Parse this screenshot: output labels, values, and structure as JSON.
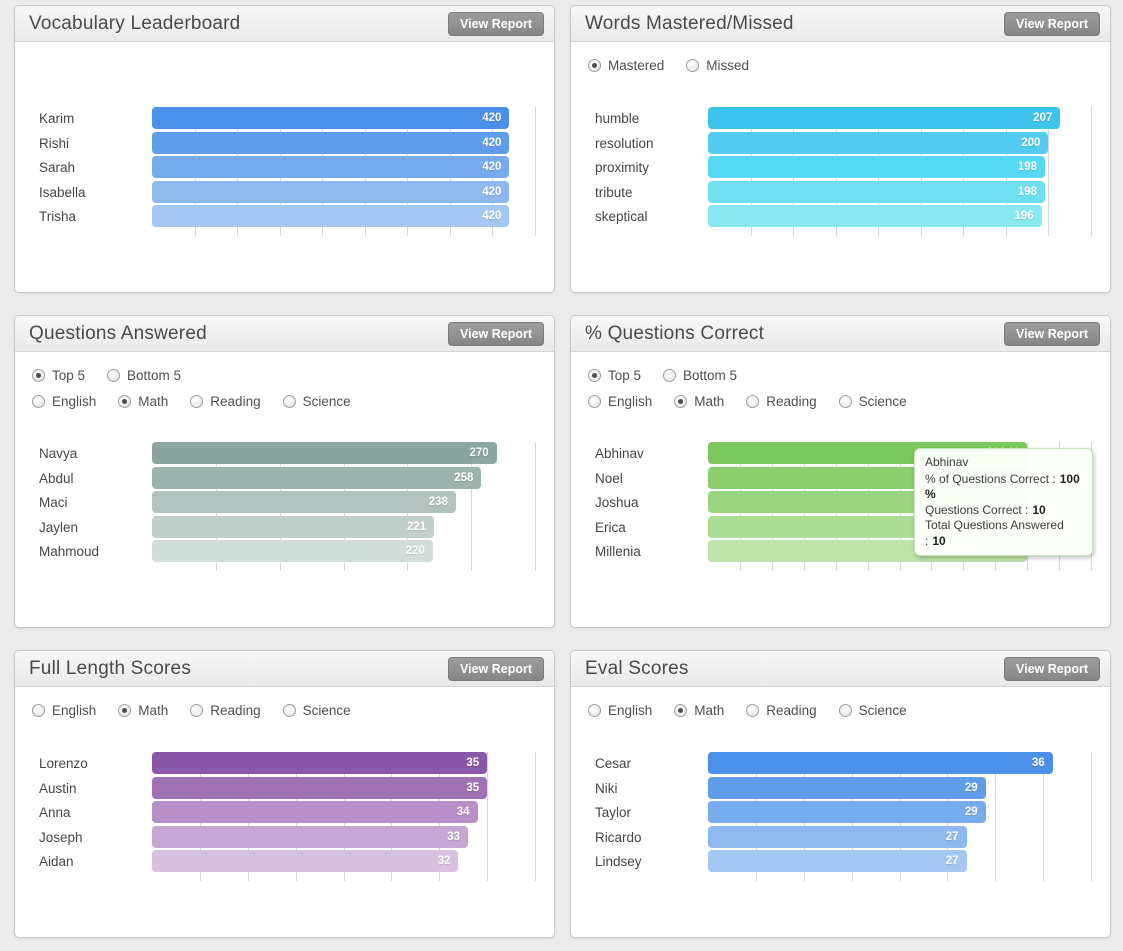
{
  "panels": [
    {
      "title": "Vocabulary Leaderboard",
      "view_report_label": "View Report",
      "radio_rows": [],
      "chart_data": {
        "type": "bar",
        "orientation": "horizontal",
        "categories": [
          "Karim",
          "Rishi",
          "Sarah",
          "Isabella",
          "Trisha"
        ],
        "values": [
          420,
          420,
          420,
          420,
          420
        ],
        "value_labels": [
          "420",
          "420",
          "420",
          "420",
          "420"
        ],
        "axis_max": 450,
        "grid_step": 50,
        "grid": true,
        "bar_colors": [
          "#4a8fe8",
          "#5f9ce9",
          "#77abec",
          "#8db9ef",
          "#a4c7f2"
        ]
      }
    },
    {
      "title": "Words Mastered/Missed",
      "view_report_label": "View Report",
      "radio_rows": [
        [
          {
            "label": "Mastered",
            "selected": true
          },
          {
            "label": "Missed",
            "selected": false
          }
        ]
      ],
      "chart_data": {
        "type": "bar",
        "orientation": "horizontal",
        "categories": [
          "humble",
          "resolution",
          "proximity",
          "tribute",
          "skeptical"
        ],
        "values": [
          207,
          200,
          198,
          198,
          196
        ],
        "value_labels": [
          "207",
          "200",
          "198",
          "198",
          "196"
        ],
        "axis_max": 225,
        "grid_step": 25,
        "grid": true,
        "bar_colors": [
          "#3ec3ef",
          "#54ccf1",
          "#57d8f4",
          "#6edfef",
          "#89e7f1"
        ]
      }
    },
    {
      "title": "Questions Answered",
      "view_report_label": "View Report",
      "radio_rows": [
        [
          {
            "label": "Top 5",
            "selected": true
          },
          {
            "label": "Bottom 5",
            "selected": false
          }
        ],
        [
          {
            "label": "English",
            "selected": false
          },
          {
            "label": "Math",
            "selected": true
          },
          {
            "label": "Reading",
            "selected": false
          },
          {
            "label": "Science",
            "selected": false
          }
        ]
      ],
      "chart_data": {
        "type": "bar",
        "orientation": "horizontal",
        "categories": [
          "Navya",
          "Abdul",
          "Maci",
          "Jaylen",
          "Mahmoud"
        ],
        "values": [
          270,
          258,
          238,
          221,
          220
        ],
        "value_labels": [
          "270",
          "258",
          "238",
          "221",
          "220"
        ],
        "axis_max": 300,
        "grid_step": 50,
        "grid": true,
        "bar_colors": [
          "#8ba5a0",
          "#9db3ae",
          "#b1c3be",
          "#c2d0cc",
          "#d2dcd8"
        ]
      }
    },
    {
      "title": "% Questions Correct",
      "view_report_label": "View Report",
      "radio_rows": [
        [
          {
            "label": "Top 5",
            "selected": true
          },
          {
            "label": "Bottom 5",
            "selected": false
          }
        ],
        [
          {
            "label": "English",
            "selected": false
          },
          {
            "label": "Math",
            "selected": true
          },
          {
            "label": "Reading",
            "selected": false
          },
          {
            "label": "Science",
            "selected": false
          }
        ]
      ],
      "chart_data": {
        "type": "bar",
        "orientation": "horizontal",
        "categories": [
          "Abhinav",
          "Noel",
          "Joshua",
          "Erica",
          "Millenia"
        ],
        "values": [
          100,
          100,
          100,
          100,
          100
        ],
        "value_labels": [
          "100 %",
          "100 %",
          "100 %",
          "100 %",
          "100 %"
        ],
        "axis_max": 120,
        "grid_step": 10,
        "grid": true,
        "bar_colors": [
          "#7cc75e",
          "#8bce6e",
          "#9bd581",
          "#addc95",
          "#bfe4aa"
        ]
      },
      "tooltip": {
        "name": "Abhinav",
        "rows": [
          {
            "label": "% of Questions Correct :",
            "value": "100 %"
          },
          {
            "label": "Questions Correct :",
            "value": "10"
          },
          {
            "label": "Total Questions Answered :",
            "value": "10"
          }
        ]
      }
    },
    {
      "title": "Full Length Scores",
      "view_report_label": "View Report",
      "radio_rows": [
        [
          {
            "label": "English",
            "selected": false
          },
          {
            "label": "Math",
            "selected": true
          },
          {
            "label": "Reading",
            "selected": false
          },
          {
            "label": "Science",
            "selected": false
          }
        ]
      ],
      "chart_data": {
        "type": "bar",
        "orientation": "horizontal",
        "categories": [
          "Lorenzo",
          "Austin",
          "Anna",
          "Joseph",
          "Aidan"
        ],
        "values": [
          35,
          35,
          34,
          33,
          32
        ],
        "value_labels": [
          "35",
          "35",
          "34",
          "33",
          "32"
        ],
        "axis_max": 40,
        "grid_step": 5,
        "grid": true,
        "bar_colors": [
          "#8a58a6",
          "#9f71b2",
          "#b78fc6",
          "#c6a6d2",
          "#d8c0e1"
        ]
      }
    },
    {
      "title": "Eval Scores",
      "view_report_label": "View Report",
      "radio_rows": [
        [
          {
            "label": "English",
            "selected": false
          },
          {
            "label": "Math",
            "selected": true
          },
          {
            "label": "Reading",
            "selected": false
          },
          {
            "label": "Science",
            "selected": false
          }
        ]
      ],
      "chart_data": {
        "type": "bar",
        "orientation": "horizontal",
        "categories": [
          "Cesar",
          "Niki",
          "Taylor",
          "Ricardo",
          "Lindsey"
        ],
        "values": [
          36,
          29,
          29,
          27,
          27
        ],
        "value_labels": [
          "36",
          "29",
          "29",
          "27",
          "27"
        ],
        "axis_max": 40,
        "grid_step": 5,
        "grid": true,
        "bar_colors": [
          "#4a8fe8",
          "#5f9ce9",
          "#77abec",
          "#8db9ef",
          "#a4c7f2"
        ]
      }
    }
  ]
}
